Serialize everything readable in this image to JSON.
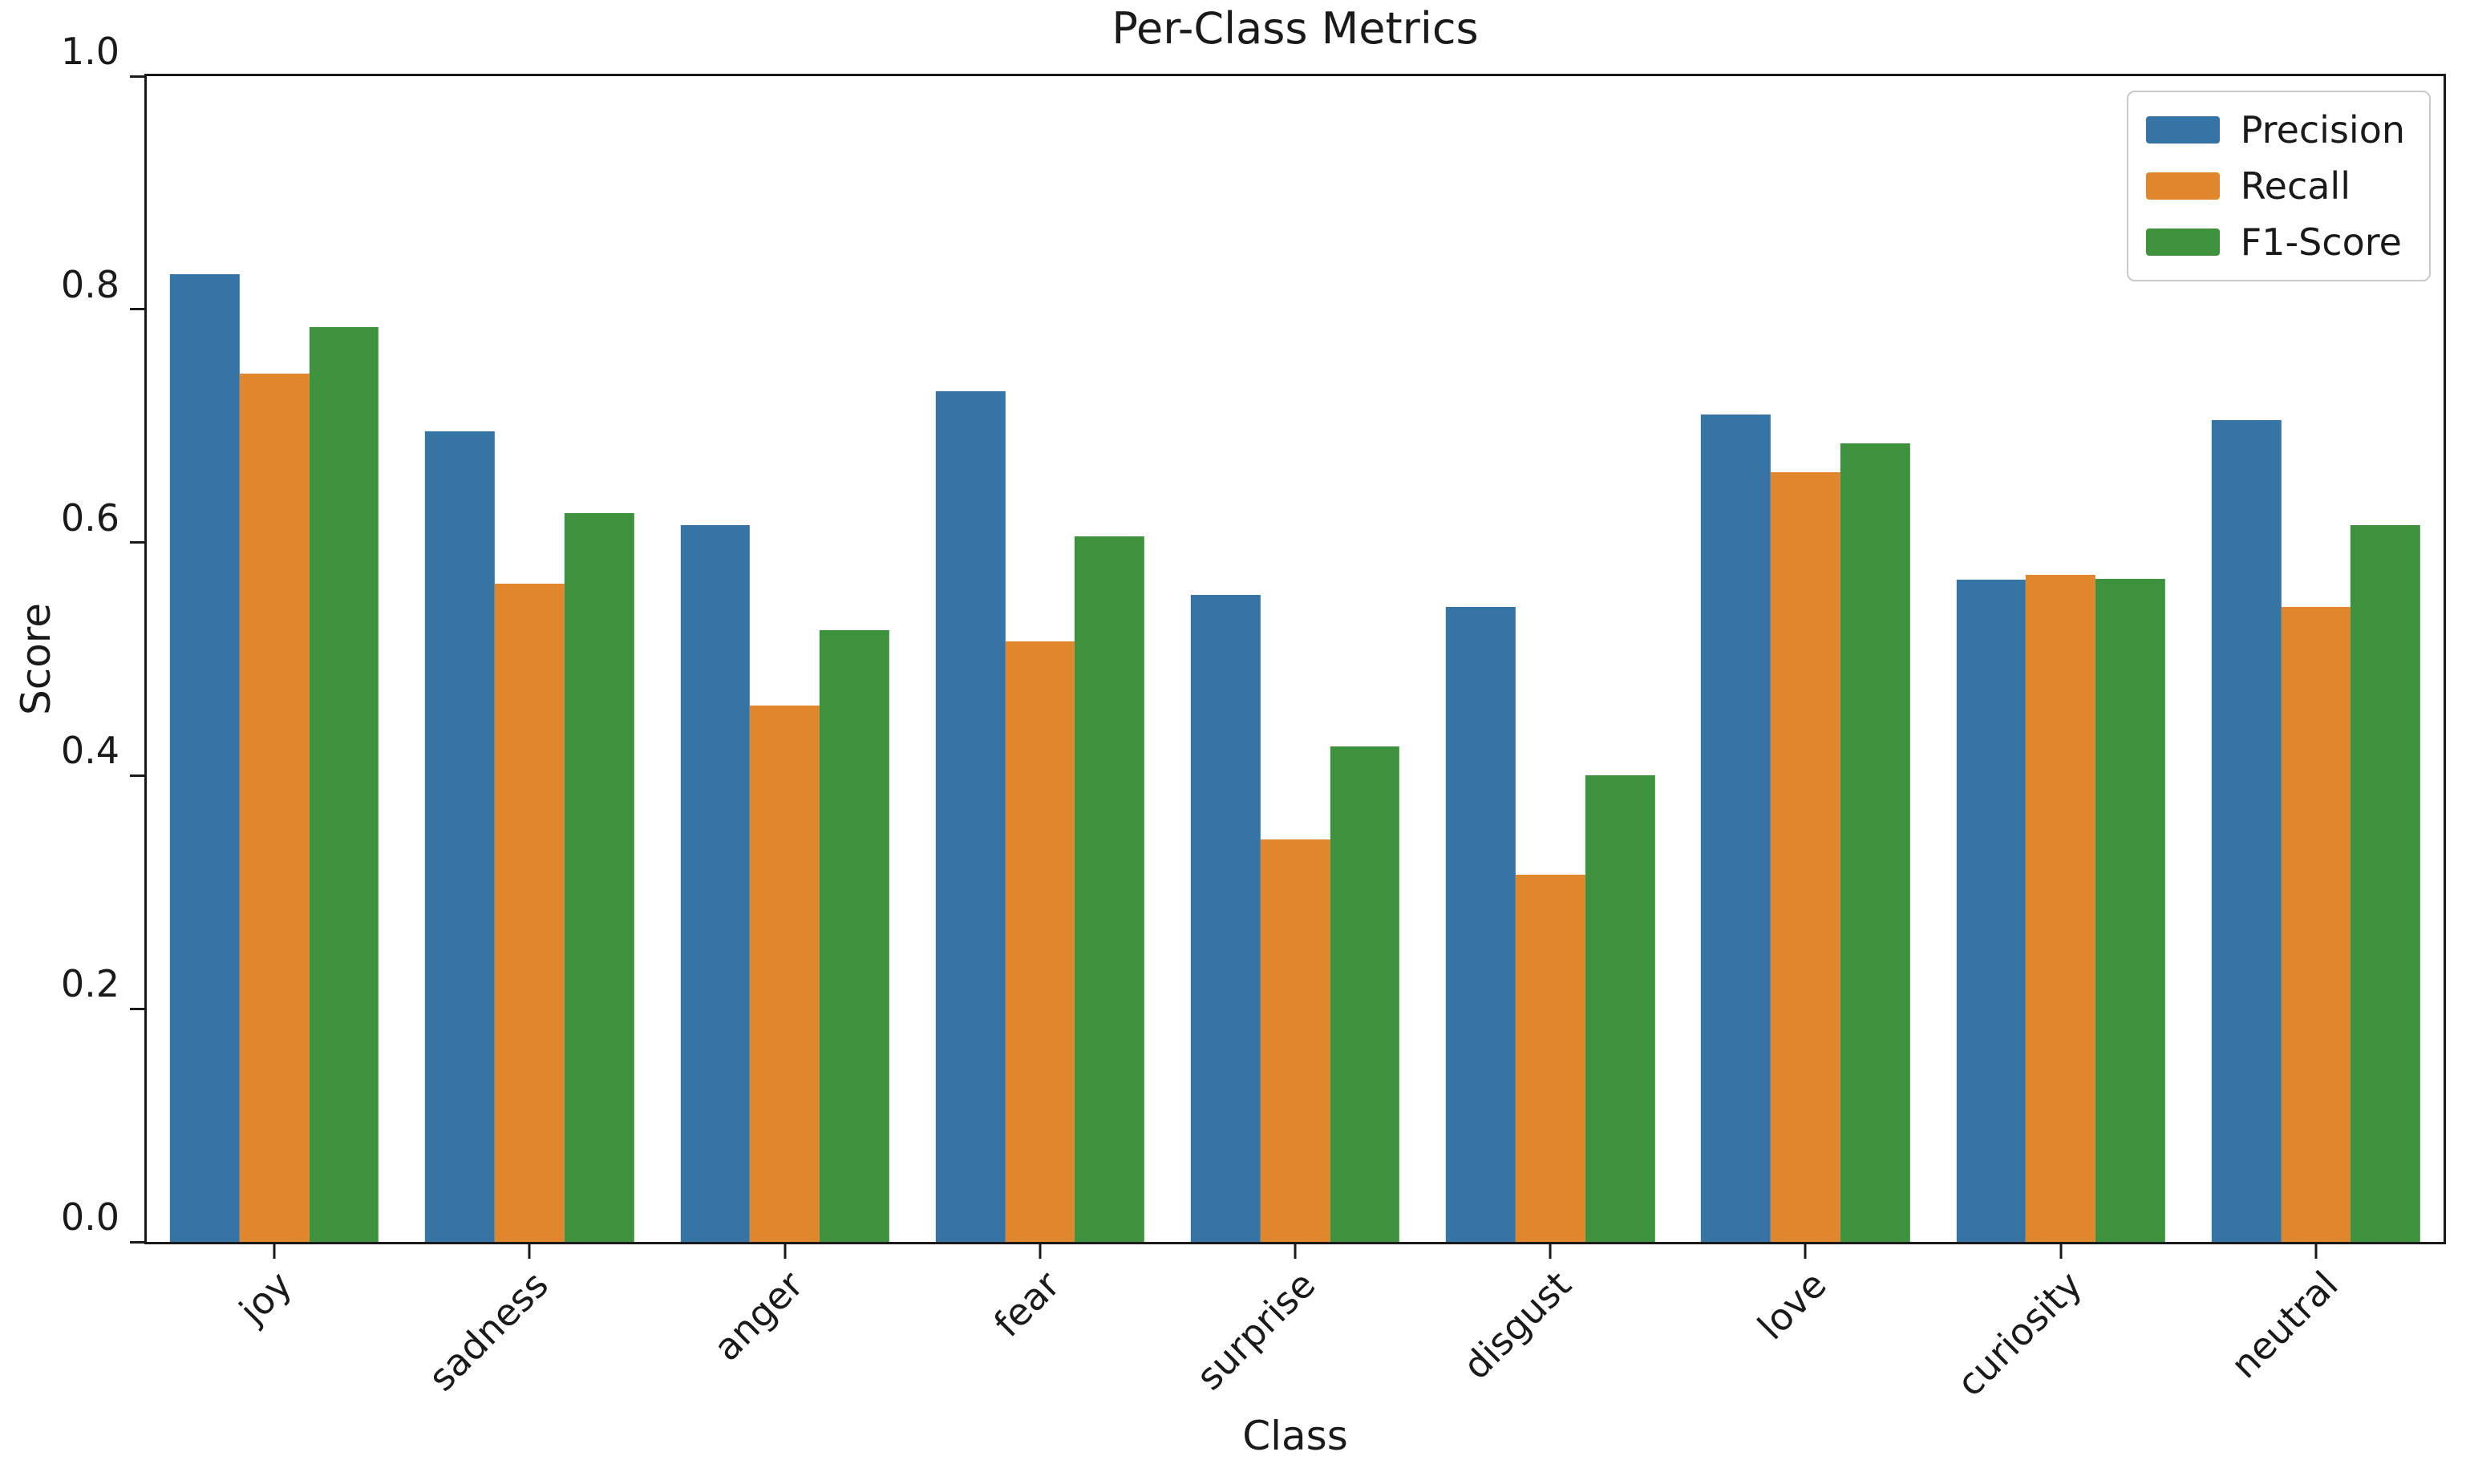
{
  "chart_data": {
    "type": "bar",
    "title": "Per-Class Metrics",
    "xlabel": "Class",
    "ylabel": "Score",
    "categories": [
      "joy",
      "sadness",
      "anger",
      "fear",
      "surprise",
      "disgust",
      "love",
      "curiosity",
      "neutral"
    ],
    "series": [
      {
        "name": "Precision",
        "color": "#3574a4",
        "values": [
          0.83,
          0.695,
          0.615,
          0.73,
          0.555,
          0.545,
          0.71,
          0.568,
          0.705
        ]
      },
      {
        "name": "Recall",
        "color": "#e0872e",
        "values": [
          0.745,
          0.565,
          0.46,
          0.515,
          0.345,
          0.315,
          0.66,
          0.572,
          0.545
        ]
      },
      {
        "name": "F1-Score",
        "color": "#3f923d",
        "values": [
          0.785,
          0.625,
          0.525,
          0.605,
          0.425,
          0.4,
          0.685,
          0.569,
          0.615
        ]
      }
    ],
    "ylim": [
      0.0,
      1.0
    ],
    "yticks": [
      "0.0",
      "0.2",
      "0.4",
      "0.6",
      "0.8",
      "1.0"
    ],
    "grid": false,
    "legend_position": "upper right"
  },
  "colors": {
    "background": "#ffffff",
    "spine": "#1a1a1a",
    "legend_border": "#c9c9c9",
    "text": "#1a1a1a"
  }
}
